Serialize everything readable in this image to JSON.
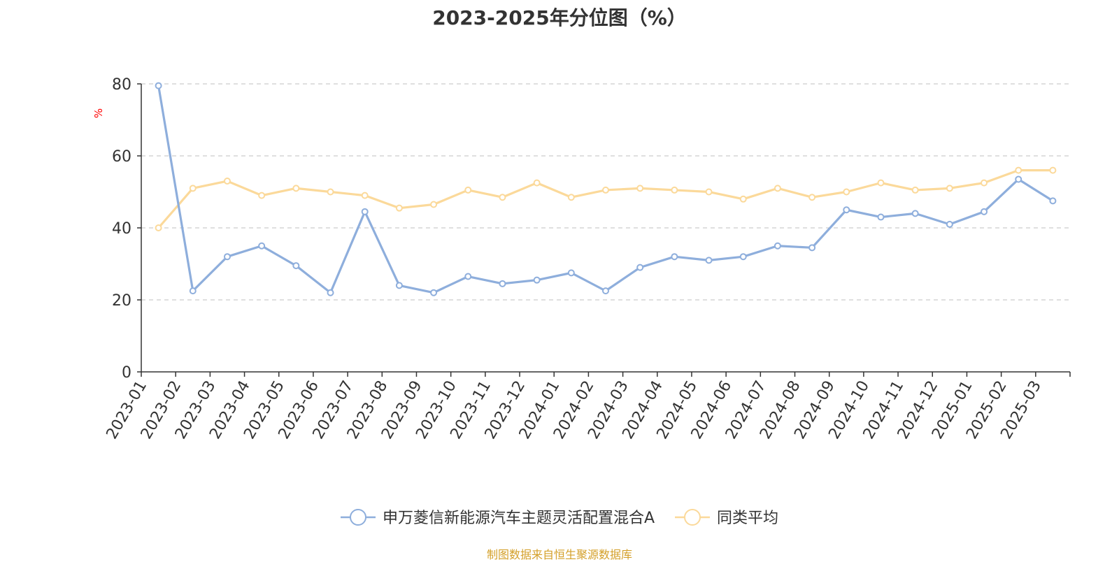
{
  "chart_data": {
    "type": "line",
    "title": "2023-2025年分位图（%）",
    "ylabel": "%",
    "xlabel": "",
    "ylim": [
      0,
      80
    ],
    "yticks": [
      0,
      20,
      40,
      60,
      80
    ],
    "grid": true,
    "legend_position": "bottom",
    "categories": [
      "2023-01",
      "2023-02",
      "2023-03",
      "2023-04",
      "2023-05",
      "2023-06",
      "2023-07",
      "2023-08",
      "2023-09",
      "2023-10",
      "2023-11",
      "2023-12",
      "2024-01",
      "2024-02",
      "2024-03",
      "2024-04",
      "2024-05",
      "2024-06",
      "2024-07",
      "2024-08",
      "2024-09",
      "2024-10",
      "2024-11",
      "2024-12",
      "2025-01",
      "2025-02",
      "2025-03"
    ],
    "series": [
      {
        "name": "申万菱信新能源汽车主题灵活配置混合A",
        "color": "#8eaedc",
        "values": [
          79.5,
          22.5,
          32,
          35,
          29.5,
          22,
          44.5,
          24,
          22,
          26.5,
          24.5,
          25.5,
          27.5,
          22.5,
          29,
          32,
          31,
          32,
          35,
          34.5,
          45,
          43,
          44,
          41,
          44.5,
          53.5,
          47.5
        ]
      },
      {
        "name": "同类平均",
        "color": "#fbd99a",
        "values": [
          40,
          51,
          53,
          49,
          51,
          50,
          49,
          45.5,
          46.5,
          50.5,
          48.5,
          52.5,
          48.5,
          50.5,
          51,
          50.5,
          50,
          48,
          51,
          48.5,
          50,
          52.5,
          50.5,
          51,
          52.5,
          56,
          56
        ]
      }
    ]
  },
  "footer": {
    "source": "制图数据来自恒生聚源数据库"
  }
}
